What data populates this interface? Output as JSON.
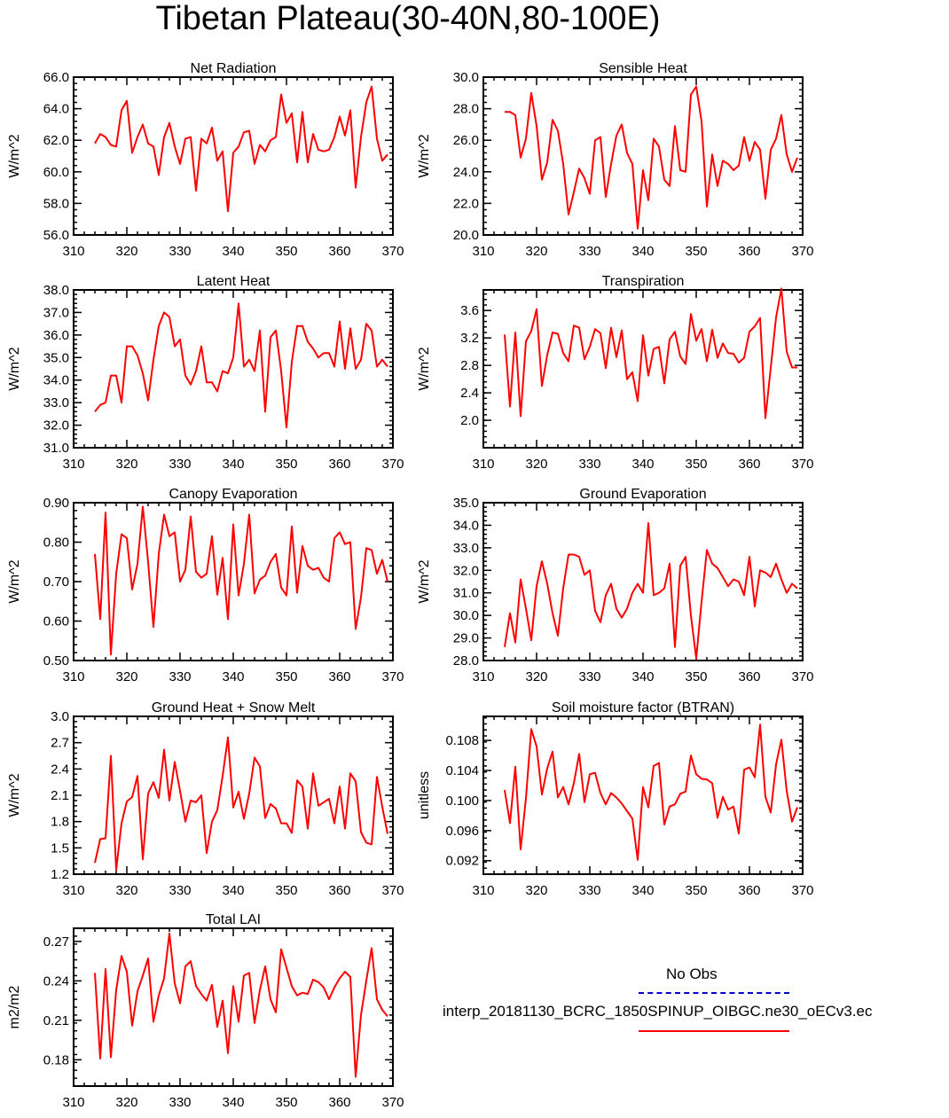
{
  "title": "Tibetan Plateau(30-40N,80-100E)",
  "legend": {
    "no_obs": "No Obs",
    "run_name": "interp_20181130_BCRC_1850SPINUP_OIBGC.ne30_oECv3.ec",
    "obs_color": "#0000cc",
    "run_color": "#ff0000"
  },
  "x_ticks": [
    "310",
    "320",
    "330",
    "340",
    "350",
    "360",
    "370"
  ],
  "chart_data": [
    {
      "type": "line",
      "title": "Net Radiation",
      "ylabel": "W/m^2",
      "xlim": [
        310,
        370
      ],
      "ylim": [
        56,
        66
      ],
      "yticks": [
        56,
        58,
        60,
        62,
        64,
        66
      ],
      "ytick_labels": [
        "56.0",
        "58.0",
        "60.0",
        "62.0",
        "64.0",
        "66.0"
      ],
      "x": [
        314,
        315,
        316,
        317,
        318,
        319,
        320,
        321,
        322,
        323,
        324,
        325,
        326,
        327,
        328,
        329,
        330,
        331,
        332,
        333,
        334,
        335,
        336,
        337,
        338,
        339,
        340,
        341,
        342,
        343,
        344,
        345,
        346,
        347,
        348,
        349,
        350,
        351,
        352,
        353,
        354,
        355,
        356,
        357,
        358,
        359,
        360,
        361,
        362,
        363,
        364,
        365,
        366,
        367,
        368,
        369
      ],
      "values": [
        61.8,
        62.4,
        62.2,
        61.7,
        61.6,
        63.9,
        64.5,
        61.2,
        62.2,
        63.0,
        61.8,
        61.6,
        59.8,
        62.2,
        63.1,
        61.6,
        60.5,
        62.1,
        62.2,
        58.8,
        62.1,
        61.8,
        62.8,
        60.7,
        61.3,
        57.5,
        61.2,
        61.6,
        62.5,
        62.6,
        60.5,
        61.7,
        61.3,
        62.0,
        62.2,
        64.9,
        63.1,
        63.7,
        60.6,
        63.8,
        60.6,
        62.4,
        61.4,
        61.3,
        61.4,
        62.2,
        63.5,
        62.3,
        63.9,
        59.0,
        62.2,
        64.4,
        65.4,
        62.1,
        60.7,
        61.1
      ]
    },
    {
      "type": "line",
      "title": "Sensible Heat",
      "ylabel": "W/m^2",
      "xlim": [
        310,
        370
      ],
      "ylim": [
        20,
        30
      ],
      "yticks": [
        20,
        22,
        24,
        26,
        28,
        30
      ],
      "ytick_labels": [
        "20.0",
        "22.0",
        "24.0",
        "26.0",
        "28.0",
        "30.0"
      ],
      "x": [
        314,
        315,
        316,
        317,
        318,
        319,
        320,
        321,
        322,
        323,
        324,
        325,
        326,
        327,
        328,
        329,
        330,
        331,
        332,
        333,
        334,
        335,
        336,
        337,
        338,
        339,
        340,
        341,
        342,
        343,
        344,
        345,
        346,
        347,
        348,
        349,
        350,
        351,
        352,
        353,
        354,
        355,
        356,
        357,
        358,
        359,
        360,
        361,
        362,
        363,
        364,
        365,
        366,
        367,
        368,
        369
      ],
      "values": [
        27.8,
        27.8,
        27.6,
        24.9,
        26.1,
        29.0,
        26.9,
        23.5,
        24.6,
        27.3,
        26.6,
        24.5,
        21.3,
        22.7,
        24.2,
        23.6,
        22.6,
        26.0,
        26.2,
        22.4,
        24.5,
        26.3,
        27.0,
        25.2,
        24.5,
        20.4,
        24.1,
        22.2,
        26.1,
        25.6,
        23.5,
        23.1,
        26.9,
        24.1,
        24.0,
        28.9,
        29.4,
        27.2,
        21.8,
        25.1,
        23.1,
        24.7,
        24.5,
        24.1,
        24.4,
        26.2,
        24.7,
        25.9,
        25.4,
        22.3,
        25.4,
        26.1,
        27.6,
        25.1,
        24.0,
        24.9
      ]
    },
    {
      "type": "line",
      "title": "Latent Heat",
      "ylabel": "W/m^2",
      "xlim": [
        310,
        370
      ],
      "ylim": [
        31,
        38
      ],
      "yticks": [
        31,
        32,
        33,
        34,
        35,
        36,
        37,
        38
      ],
      "ytick_labels": [
        "31.0",
        "32.0",
        "33.0",
        "34.0",
        "35.0",
        "36.0",
        "37.0",
        "38.0"
      ],
      "x": [
        314,
        315,
        316,
        317,
        318,
        319,
        320,
        321,
        322,
        323,
        324,
        325,
        326,
        327,
        328,
        329,
        330,
        331,
        332,
        333,
        334,
        335,
        336,
        337,
        338,
        339,
        340,
        341,
        342,
        343,
        344,
        345,
        346,
        347,
        348,
        349,
        350,
        351,
        352,
        353,
        354,
        355,
        356,
        357,
        358,
        359,
        360,
        361,
        362,
        363,
        364,
        365,
        366,
        367,
        368,
        369
      ],
      "values": [
        32.6,
        32.9,
        33.0,
        34.2,
        34.2,
        33.0,
        35.5,
        35.5,
        35.1,
        34.3,
        33.1,
        34.9,
        36.4,
        37.0,
        36.8,
        35.5,
        35.8,
        34.2,
        33.8,
        34.4,
        35.5,
        33.9,
        33.9,
        33.5,
        34.4,
        34.3,
        35.0,
        37.4,
        34.6,
        34.9,
        34.4,
        36.2,
        32.6,
        35.9,
        36.2,
        34.4,
        31.9,
        34.8,
        36.4,
        36.4,
        35.7,
        35.4,
        35.0,
        35.2,
        35.2,
        34.6,
        36.6,
        34.5,
        36.3,
        34.5,
        34.9,
        36.5,
        36.2,
        34.6,
        34.9,
        34.6
      ]
    },
    {
      "type": "line",
      "title": "Transpiration",
      "ylabel": "W/m^2",
      "xlim": [
        310,
        370
      ],
      "ylim": [
        1.6,
        3.9
      ],
      "yticks": [
        2.0,
        2.4,
        2.8,
        3.2,
        3.6
      ],
      "ytick_labels": [
        "2.0",
        "2.4",
        "2.8",
        "3.2",
        "3.6"
      ],
      "x": [
        314,
        315,
        316,
        317,
        318,
        319,
        320,
        321,
        322,
        323,
        324,
        325,
        326,
        327,
        328,
        329,
        330,
        331,
        332,
        333,
        334,
        335,
        336,
        337,
        338,
        339,
        340,
        341,
        342,
        343,
        344,
        345,
        346,
        347,
        348,
        349,
        350,
        351,
        352,
        353,
        354,
        355,
        356,
        357,
        358,
        359,
        360,
        361,
        362,
        363,
        364,
        365,
        366,
        367,
        368,
        369
      ],
      "values": [
        3.25,
        2.2,
        3.28,
        2.06,
        3.15,
        3.3,
        3.62,
        2.5,
        2.95,
        3.28,
        3.26,
        2.98,
        2.86,
        3.38,
        3.35,
        2.89,
        3.07,
        3.33,
        3.27,
        2.76,
        3.35,
        2.92,
        3.31,
        2.6,
        2.7,
        2.28,
        3.24,
        2.65,
        3.04,
        3.07,
        2.54,
        3.18,
        3.29,
        2.93,
        2.82,
        3.55,
        3.16,
        3.33,
        2.86,
        3.32,
        2.91,
        3.12,
        2.98,
        2.97,
        2.84,
        2.91,
        3.29,
        3.37,
        3.49,
        2.03,
        2.76,
        3.5,
        3.92,
        3.0,
        2.77,
        2.77
      ]
    },
    {
      "type": "line",
      "title": "Canopy Evaporation",
      "ylabel": "W/m^2",
      "xlim": [
        310,
        370
      ],
      "ylim": [
        0.5,
        0.9
      ],
      "yticks": [
        0.5,
        0.6,
        0.7,
        0.8,
        0.9
      ],
      "ytick_labels": [
        "0.50",
        "0.60",
        "0.70",
        "0.80",
        "0.90"
      ],
      "x": [
        314,
        315,
        316,
        317,
        318,
        319,
        320,
        321,
        322,
        323,
        324,
        325,
        326,
        327,
        328,
        329,
        330,
        331,
        332,
        333,
        334,
        335,
        336,
        337,
        338,
        339,
        340,
        341,
        342,
        343,
        344,
        345,
        346,
        347,
        348,
        349,
        350,
        351,
        352,
        353,
        354,
        355,
        356,
        357,
        358,
        359,
        360,
        361,
        362,
        363,
        364,
        365,
        366,
        367,
        368,
        369
      ],
      "values": [
        0.77,
        0.605,
        0.875,
        0.515,
        0.72,
        0.82,
        0.81,
        0.68,
        0.745,
        0.89,
        0.75,
        0.585,
        0.77,
        0.87,
        0.815,
        0.825,
        0.7,
        0.73,
        0.865,
        0.725,
        0.71,
        0.72,
        0.815,
        0.667,
        0.76,
        0.605,
        0.845,
        0.665,
        0.745,
        0.87,
        0.67,
        0.705,
        0.715,
        0.75,
        0.77,
        0.685,
        0.665,
        0.84,
        0.672,
        0.79,
        0.74,
        0.73,
        0.735,
        0.71,
        0.7,
        0.81,
        0.825,
        0.795,
        0.8,
        0.58,
        0.66,
        0.785,
        0.78,
        0.72,
        0.755,
        0.7
      ]
    },
    {
      "type": "line",
      "title": "Ground Evaporation",
      "ylabel": "W/m^2",
      "xlim": [
        310,
        370
      ],
      "ylim": [
        28,
        35
      ],
      "yticks": [
        28,
        29,
        30,
        31,
        32,
        33,
        34,
        35
      ],
      "ytick_labels": [
        "28.0",
        "29.0",
        "30.0",
        "31.0",
        "32.0",
        "33.0",
        "34.0",
        "35.0"
      ],
      "x": [
        314,
        315,
        316,
        317,
        318,
        319,
        320,
        321,
        322,
        323,
        324,
        325,
        326,
        327,
        328,
        329,
        330,
        331,
        332,
        333,
        334,
        335,
        336,
        337,
        338,
        339,
        340,
        341,
        342,
        343,
        344,
        345,
        346,
        347,
        348,
        349,
        350,
        351,
        352,
        353,
        354,
        355,
        356,
        357,
        358,
        359,
        360,
        361,
        362,
        363,
        364,
        365,
        366,
        367,
        368,
        369
      ],
      "values": [
        28.6,
        30.1,
        28.8,
        31.6,
        30.3,
        28.9,
        31.3,
        32.4,
        31.4,
        30.1,
        29.1,
        31.2,
        32.7,
        32.7,
        32.6,
        31.8,
        32.0,
        30.2,
        29.7,
        30.9,
        31.4,
        30.3,
        29.9,
        30.3,
        31.0,
        31.4,
        31.0,
        34.1,
        30.9,
        31.0,
        31.2,
        32.3,
        28.6,
        32.2,
        32.6,
        30.0,
        28.1,
        30.6,
        32.9,
        32.3,
        32.1,
        31.7,
        31.3,
        31.6,
        31.5,
        30.9,
        32.6,
        30.4,
        32.0,
        31.9,
        31.7,
        32.3,
        31.6,
        31.0,
        31.4,
        31.2
      ]
    },
    {
      "type": "line",
      "title": "Ground Heat + Snow Melt",
      "ylabel": "W/m^2",
      "xlim": [
        310,
        370
      ],
      "ylim": [
        1.2,
        3.0
      ],
      "yticks": [
        1.2,
        1.5,
        1.8,
        2.1,
        2.4,
        2.7,
        3.0
      ],
      "ytick_labels": [
        "1.2",
        "1.5",
        "1.8",
        "2.1",
        "2.4",
        "2.7",
        "3.0"
      ],
      "x": [
        314,
        315,
        316,
        317,
        318,
        319,
        320,
        321,
        322,
        323,
        324,
        325,
        326,
        327,
        328,
        329,
        330,
        331,
        332,
        333,
        334,
        335,
        336,
        337,
        338,
        339,
        340,
        341,
        342,
        343,
        344,
        345,
        346,
        347,
        348,
        349,
        350,
        351,
        352,
        353,
        354,
        355,
        356,
        357,
        358,
        359,
        360,
        361,
        362,
        363,
        364,
        365,
        366,
        367,
        368,
        369
      ],
      "values": [
        1.33,
        1.6,
        1.61,
        2.55,
        1.25,
        1.78,
        2.03,
        2.08,
        2.32,
        1.37,
        2.12,
        2.25,
        2.07,
        2.62,
        2.04,
        2.48,
        2.15,
        1.8,
        2.04,
        2.02,
        2.1,
        1.44,
        1.8,
        1.93,
        2.32,
        2.76,
        1.96,
        2.14,
        1.83,
        2.12,
        2.53,
        2.43,
        1.84,
        2.0,
        1.95,
        1.78,
        1.78,
        1.67,
        2.27,
        2.2,
        1.72,
        2.35,
        1.98,
        2.02,
        2.06,
        1.78,
        2.2,
        1.72,
        2.35,
        2.26,
        1.68,
        1.56,
        1.54,
        2.31,
        1.97,
        1.66
      ]
    },
    {
      "type": "line",
      "title": "Soil moisture factor (BTRAN)",
      "ylabel": "unitless",
      "xlim": [
        310,
        370
      ],
      "ylim": [
        0.0902,
        0.1112
      ],
      "yticks": [
        0.092,
        0.096,
        0.1,
        0.104,
        0.108
      ],
      "ytick_labels": [
        "0.092",
        "0.096",
        "0.100",
        "0.104",
        "0.108"
      ],
      "x": [
        314,
        315,
        316,
        317,
        318,
        319,
        320,
        321,
        322,
        323,
        324,
        325,
        326,
        327,
        328,
        329,
        330,
        331,
        332,
        333,
        334,
        335,
        336,
        337,
        338,
        339,
        340,
        341,
        342,
        343,
        344,
        345,
        346,
        347,
        348,
        349,
        350,
        351,
        352,
        353,
        354,
        355,
        356,
        357,
        358,
        359,
        360,
        361,
        362,
        363,
        364,
        365,
        366,
        367,
        368,
        369
      ],
      "values": [
        0.1014,
        0.097,
        0.1045,
        0.0935,
        0.1003,
        0.1095,
        0.1072,
        0.1008,
        0.1043,
        0.1065,
        0.1004,
        0.1018,
        0.0995,
        0.1023,
        0.1062,
        0.0998,
        0.1035,
        0.1037,
        0.101,
        0.0995,
        0.101,
        0.1004,
        0.0996,
        0.0986,
        0.0976,
        0.0921,
        0.1018,
        0.0991,
        0.1046,
        0.105,
        0.0968,
        0.0992,
        0.0995,
        0.1009,
        0.1012,
        0.106,
        0.1035,
        0.1029,
        0.1028,
        0.1023,
        0.0977,
        0.1005,
        0.0988,
        0.0992,
        0.0956,
        0.1041,
        0.1044,
        0.1031,
        0.1101,
        0.1005,
        0.0984,
        0.1048,
        0.1081,
        0.1013,
        0.0972,
        0.0991
      ]
    },
    {
      "type": "line",
      "title": "Total LAI",
      "ylabel": "m2/m2",
      "xlim": [
        310,
        370
      ],
      "ylim": [
        0.16,
        0.28
      ],
      "yticks": [
        0.18,
        0.21,
        0.24,
        0.27
      ],
      "ytick_labels": [
        "0.18",
        "0.21",
        "0.24",
        "0.27"
      ],
      "x": [
        314,
        315,
        316,
        317,
        318,
        319,
        320,
        321,
        322,
        323,
        324,
        325,
        326,
        327,
        328,
        329,
        330,
        331,
        332,
        333,
        334,
        335,
        336,
        337,
        338,
        339,
        340,
        341,
        342,
        343,
        344,
        345,
        346,
        347,
        348,
        349,
        350,
        351,
        352,
        353,
        354,
        355,
        356,
        357,
        358,
        359,
        360,
        361,
        362,
        363,
        364,
        365,
        366,
        367,
        368,
        369
      ],
      "values": [
        0.246,
        0.181,
        0.249,
        0.182,
        0.233,
        0.259,
        0.247,
        0.206,
        0.232,
        0.244,
        0.257,
        0.209,
        0.229,
        0.242,
        0.276,
        0.238,
        0.223,
        0.251,
        0.255,
        0.236,
        0.23,
        0.225,
        0.237,
        0.205,
        0.225,
        0.185,
        0.236,
        0.209,
        0.244,
        0.246,
        0.208,
        0.233,
        0.251,
        0.226,
        0.216,
        0.264,
        0.25,
        0.236,
        0.229,
        0.231,
        0.23,
        0.241,
        0.239,
        0.235,
        0.226,
        0.235,
        0.242,
        0.247,
        0.243,
        0.167,
        0.214,
        0.24,
        0.265,
        0.226,
        0.218,
        0.213
      ]
    }
  ]
}
